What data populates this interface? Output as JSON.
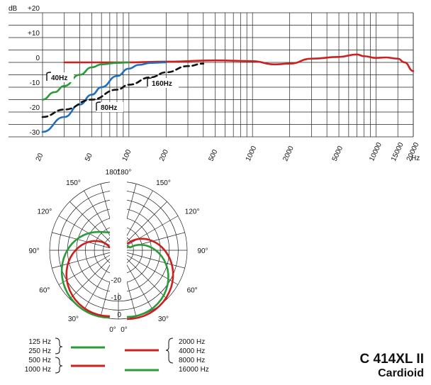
{
  "product": {
    "model": "C 414XL II",
    "pattern": "Cardioid"
  },
  "chart_data": [
    {
      "type": "line",
      "x_scale": "log",
      "xlim": [
        20,
        20000
      ],
      "ylim": [
        -30,
        20
      ],
      "ylabel": "dB",
      "xunit": "Hz",
      "y_ticks": [
        "+20",
        "+10",
        "0",
        "-10",
        "-20",
        "-30"
      ],
      "x_ticks": [
        "20",
        "50",
        "100",
        "200",
        "500",
        "1000",
        "2000",
        "5000",
        "10000",
        "15000",
        "20000"
      ],
      "grid": true,
      "annotations": [
        "40Hz",
        "80Hz",
        "160Hz"
      ],
      "series": [
        {
          "id": "flat",
          "color": "#cc1f1f",
          "style": "solid",
          "x": [
            30,
            50,
            100,
            200,
            500,
            1000,
            1500,
            2000,
            3000,
            5000,
            7000,
            8000,
            10000,
            12000,
            15000,
            17000,
            20000
          ],
          "y": [
            0,
            0,
            0,
            0.3,
            0.8,
            0.5,
            -0.8,
            -0.5,
            1.5,
            2.2,
            3.2,
            2.5,
            1.8,
            2.0,
            1.5,
            0,
            -3.5
          ]
        },
        {
          "id": "hp40",
          "color": "#2a9a3a",
          "style": "solid",
          "x": [
            20,
            25,
            30,
            40,
            50,
            60,
            80,
            100
          ],
          "y": [
            -15,
            -12,
            -9.5,
            -5,
            -2,
            -0.8,
            -0.2,
            0
          ]
        },
        {
          "id": "hp80",
          "color": "#1f6fbf",
          "style": "solid",
          "x": [
            20,
            30,
            40,
            50,
            60,
            80,
            100,
            120,
            150,
            200
          ],
          "y": [
            -28,
            -22,
            -17,
            -13,
            -10,
            -5.5,
            -2.5,
            -1,
            -0.2,
            0
          ]
        },
        {
          "id": "hp160",
          "color": "#111111",
          "style": "dashed",
          "x": [
            20,
            30,
            50,
            80,
            100,
            150,
            200,
            300,
            400
          ],
          "y": [
            -22,
            -19,
            -15,
            -11,
            -9,
            -6,
            -4,
            -1.5,
            -0.5
          ]
        }
      ]
    },
    {
      "type": "polar",
      "radial_ticks": [
        "0",
        "-10",
        "-20"
      ],
      "angle_labels": {
        "left": [
          "180°",
          "150°",
          "120°",
          "90°",
          "60°",
          "30°",
          "0°"
        ],
        "right": [
          "180°",
          "150°",
          "120°",
          "90°",
          "60°",
          "30°",
          "0°"
        ]
      },
      "series": [
        {
          "side": "left",
          "color": "#2a9a3a",
          "frequencies": [
            "125 Hz",
            "250 Hz"
          ]
        },
        {
          "side": "left",
          "color": "#cc1f1f",
          "frequencies": [
            "500 Hz",
            "1000 Hz"
          ]
        },
        {
          "side": "right",
          "color": "#cc1f1f",
          "frequencies": [
            "2000 Hz",
            "4000 Hz",
            "8000 Hz"
          ]
        },
        {
          "side": "right",
          "color": "#2a9a3a",
          "frequencies": [
            "16000 Hz"
          ]
        }
      ]
    }
  ]
}
